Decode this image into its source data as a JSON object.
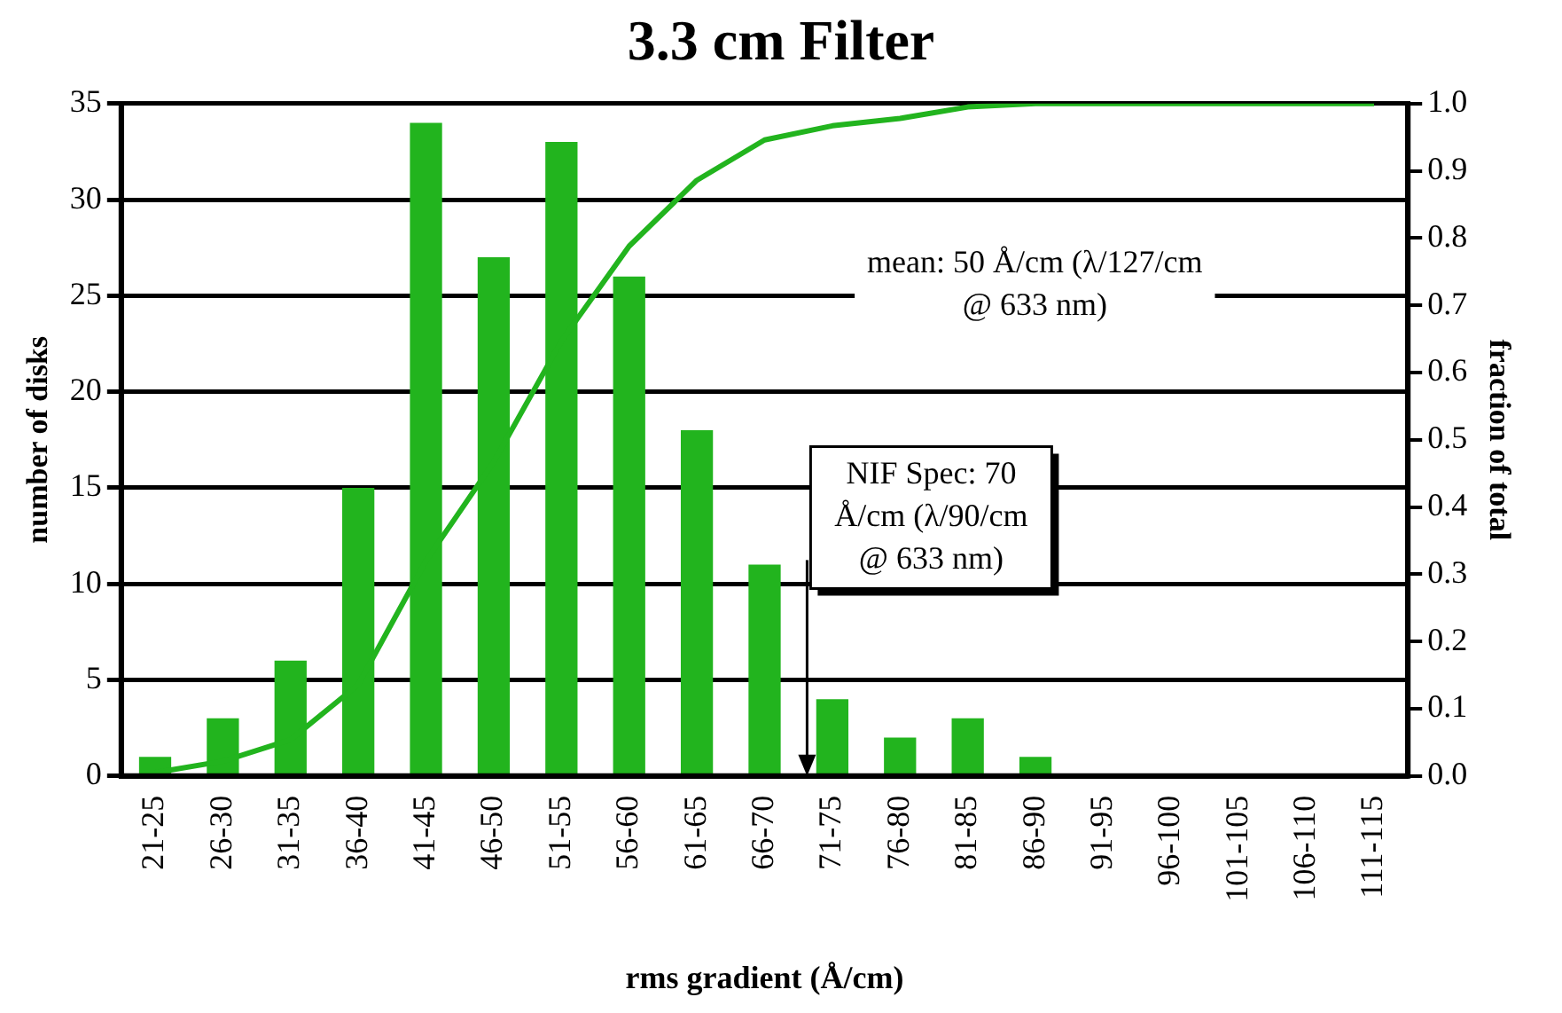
{
  "chart_data": {
    "type": "bar",
    "title": "3.3 cm Filter",
    "xlabel": "rms gradient (Å/cm)",
    "ylabel": "number of disks",
    "y2label": "fraction of total",
    "categories": [
      "21-25",
      "26-30",
      "31-35",
      "36-40",
      "41-45",
      "46-50",
      "51-55",
      "56-60",
      "61-65",
      "66-70",
      "71-75",
      "76-80",
      "81-85",
      "86-90",
      "91-95",
      "96-100",
      "101-105",
      "106-110",
      "111-115"
    ],
    "series": [
      {
        "color": "#22b41e",
        "values": [
          1,
          3,
          6,
          15,
          34,
          27,
          33,
          26,
          18,
          11,
          4,
          2,
          3,
          1,
          0,
          0,
          0,
          0,
          0
        ]
      },
      {
        "type": "line",
        "axis": "y2",
        "color": "#22b41e",
        "values": [
          0.005,
          0.022,
          0.054,
          0.136,
          0.32,
          0.467,
          0.647,
          0.788,
          0.886,
          0.946,
          0.967,
          0.978,
          0.995,
          1,
          1,
          1,
          1,
          1,
          1
        ]
      }
    ],
    "ylim": [
      0,
      35
    ],
    "yticks": [
      0,
      5,
      10,
      15,
      20,
      25,
      30,
      35
    ],
    "y2lim": [
      0,
      1
    ],
    "y2ticks": [
      {
        "value": 0,
        "label": "0.0"
      },
      {
        "value": 0.1,
        "label": "0.1"
      },
      {
        "value": 0.2,
        "label": "0.2"
      },
      {
        "value": 0.3,
        "label": "0.3"
      },
      {
        "value": 0.4,
        "label": "0.4"
      },
      {
        "value": 0.5,
        "label": "0.5"
      },
      {
        "value": 0.6,
        "label": "0.6"
      },
      {
        "value": 0.7,
        "label": "0.7"
      },
      {
        "value": 0.8,
        "label": "0.8"
      },
      {
        "value": 0.9,
        "label": "0.9"
      },
      {
        "value": 1,
        "label": "1.0"
      }
    ],
    "annotations": [
      "mean: 50 Å/cm (λ/127/cm @ 633 nm)",
      "NIF Spec: 70 Å/cm (λ/90/cm @ 633 nm)"
    ],
    "grid": "y",
    "legend": false,
    "marker": "none",
    "line_style": "solid"
  }
}
